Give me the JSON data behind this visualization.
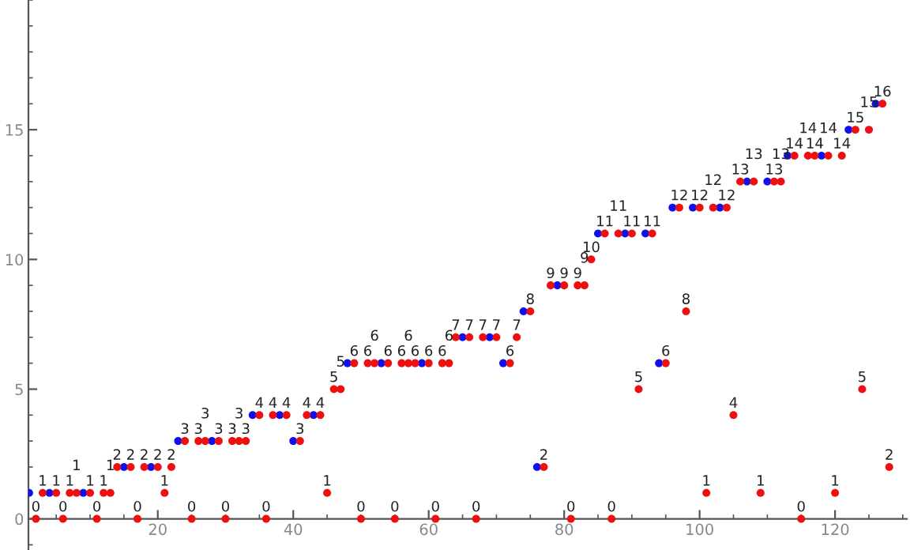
{
  "chart_data": {
    "type": "scatter",
    "xlim": [
      0.9,
      130.6
    ],
    "ylim": [
      -1.2,
      20
    ],
    "xticks": [
      20,
      40,
      60,
      80,
      100,
      120
    ],
    "yticks": [
      0,
      5,
      10,
      15
    ],
    "grid": false,
    "legend": false,
    "marker": "circle",
    "series": [
      {
        "color": "#1010ee",
        "x": [
          1,
          4,
          9,
          15,
          19,
          23,
          28,
          34,
          38,
          40,
          43,
          48,
          53,
          59,
          65,
          69,
          71,
          74,
          76,
          79,
          85,
          89,
          92,
          94,
          96,
          99,
          103,
          107,
          110,
          113,
          118,
          122,
          126
        ],
        "values": [
          1,
          1,
          1,
          2,
          2,
          3,
          3,
          4,
          4,
          3,
          4,
          6,
          6,
          6,
          7,
          7,
          6,
          8,
          2,
          9,
          11,
          11,
          11,
          6,
          12,
          12,
          12,
          13,
          13,
          14,
          14,
          15,
          16
        ]
      },
      {
        "color": "#ee1010",
        "x": [
          2,
          3,
          5,
          6,
          7,
          8,
          10,
          11,
          12,
          13,
          14,
          16,
          17,
          18,
          20,
          21,
          22,
          24,
          25,
          26,
          27,
          29,
          30,
          31,
          32,
          33,
          35,
          36,
          37,
          39,
          41,
          42,
          44,
          45,
          46,
          47,
          49,
          50,
          51,
          52,
          54,
          55,
          56,
          57,
          58,
          60,
          61,
          62,
          63,
          64,
          66,
          67,
          68,
          70,
          72,
          73,
          75,
          77,
          78,
          80,
          81,
          82,
          83,
          84,
          86,
          87,
          88,
          90,
          91,
          93,
          95,
          97,
          98,
          100,
          101,
          102,
          104,
          105,
          106,
          108,
          109,
          111,
          112,
          114,
          115,
          116,
          117,
          119,
          120,
          121,
          123,
          124,
          125,
          127,
          128
        ],
        "values": [
          0,
          1,
          1,
          0,
          1,
          1,
          1,
          0,
          1,
          1,
          2,
          2,
          0,
          2,
          2,
          1,
          2,
          3,
          0,
          3,
          3,
          3,
          0,
          3,
          3,
          3,
          4,
          0,
          4,
          4,
          3,
          4,
          4,
          1,
          5,
          5,
          6,
          0,
          6,
          6,
          6,
          0,
          6,
          6,
          6,
          6,
          0,
          6,
          6,
          7,
          7,
          0,
          7,
          7,
          6,
          7,
          8,
          2,
          9,
          9,
          0,
          9,
          9,
          10,
          11,
          0,
          11,
          11,
          5,
          11,
          6,
          12,
          8,
          12,
          1,
          12,
          12,
          4,
          13,
          13,
          1,
          13,
          13,
          14,
          0,
          14,
          14,
          14,
          1,
          14,
          15,
          5,
          15,
          16,
          2
        ],
        "value_labels": [
          "0",
          "1",
          "1",
          "0",
          "1",
          "1",
          "1",
          "0",
          "1",
          "1",
          "2",
          "2",
          "0",
          "2",
          "2",
          "1",
          "2",
          "3",
          "0",
          "3",
          "3",
          "3",
          "0",
          "3",
          "3",
          "3",
          "4",
          "0",
          "4",
          "4",
          "3",
          "4",
          "4",
          "1",
          "5",
          "5",
          "6",
          "0",
          "6",
          "6",
          "6",
          "0",
          "6",
          "6",
          "6",
          "6",
          "0",
          "6",
          "6",
          "7",
          "7",
          "0",
          "7",
          "7",
          "6",
          "7",
          "8",
          "2",
          "9",
          "9",
          "0",
          "9",
          "9",
          "10",
          "11",
          "0",
          "11",
          "11",
          "5",
          "11",
          "6",
          "12",
          "8",
          "12",
          "1",
          "12",
          "12",
          "4",
          "13",
          "13",
          "1",
          "13",
          "13",
          "14",
          "0",
          "14",
          "14",
          "14",
          "1",
          "14",
          "15",
          "5",
          "15",
          "16",
          "2"
        ]
      }
    ]
  }
}
